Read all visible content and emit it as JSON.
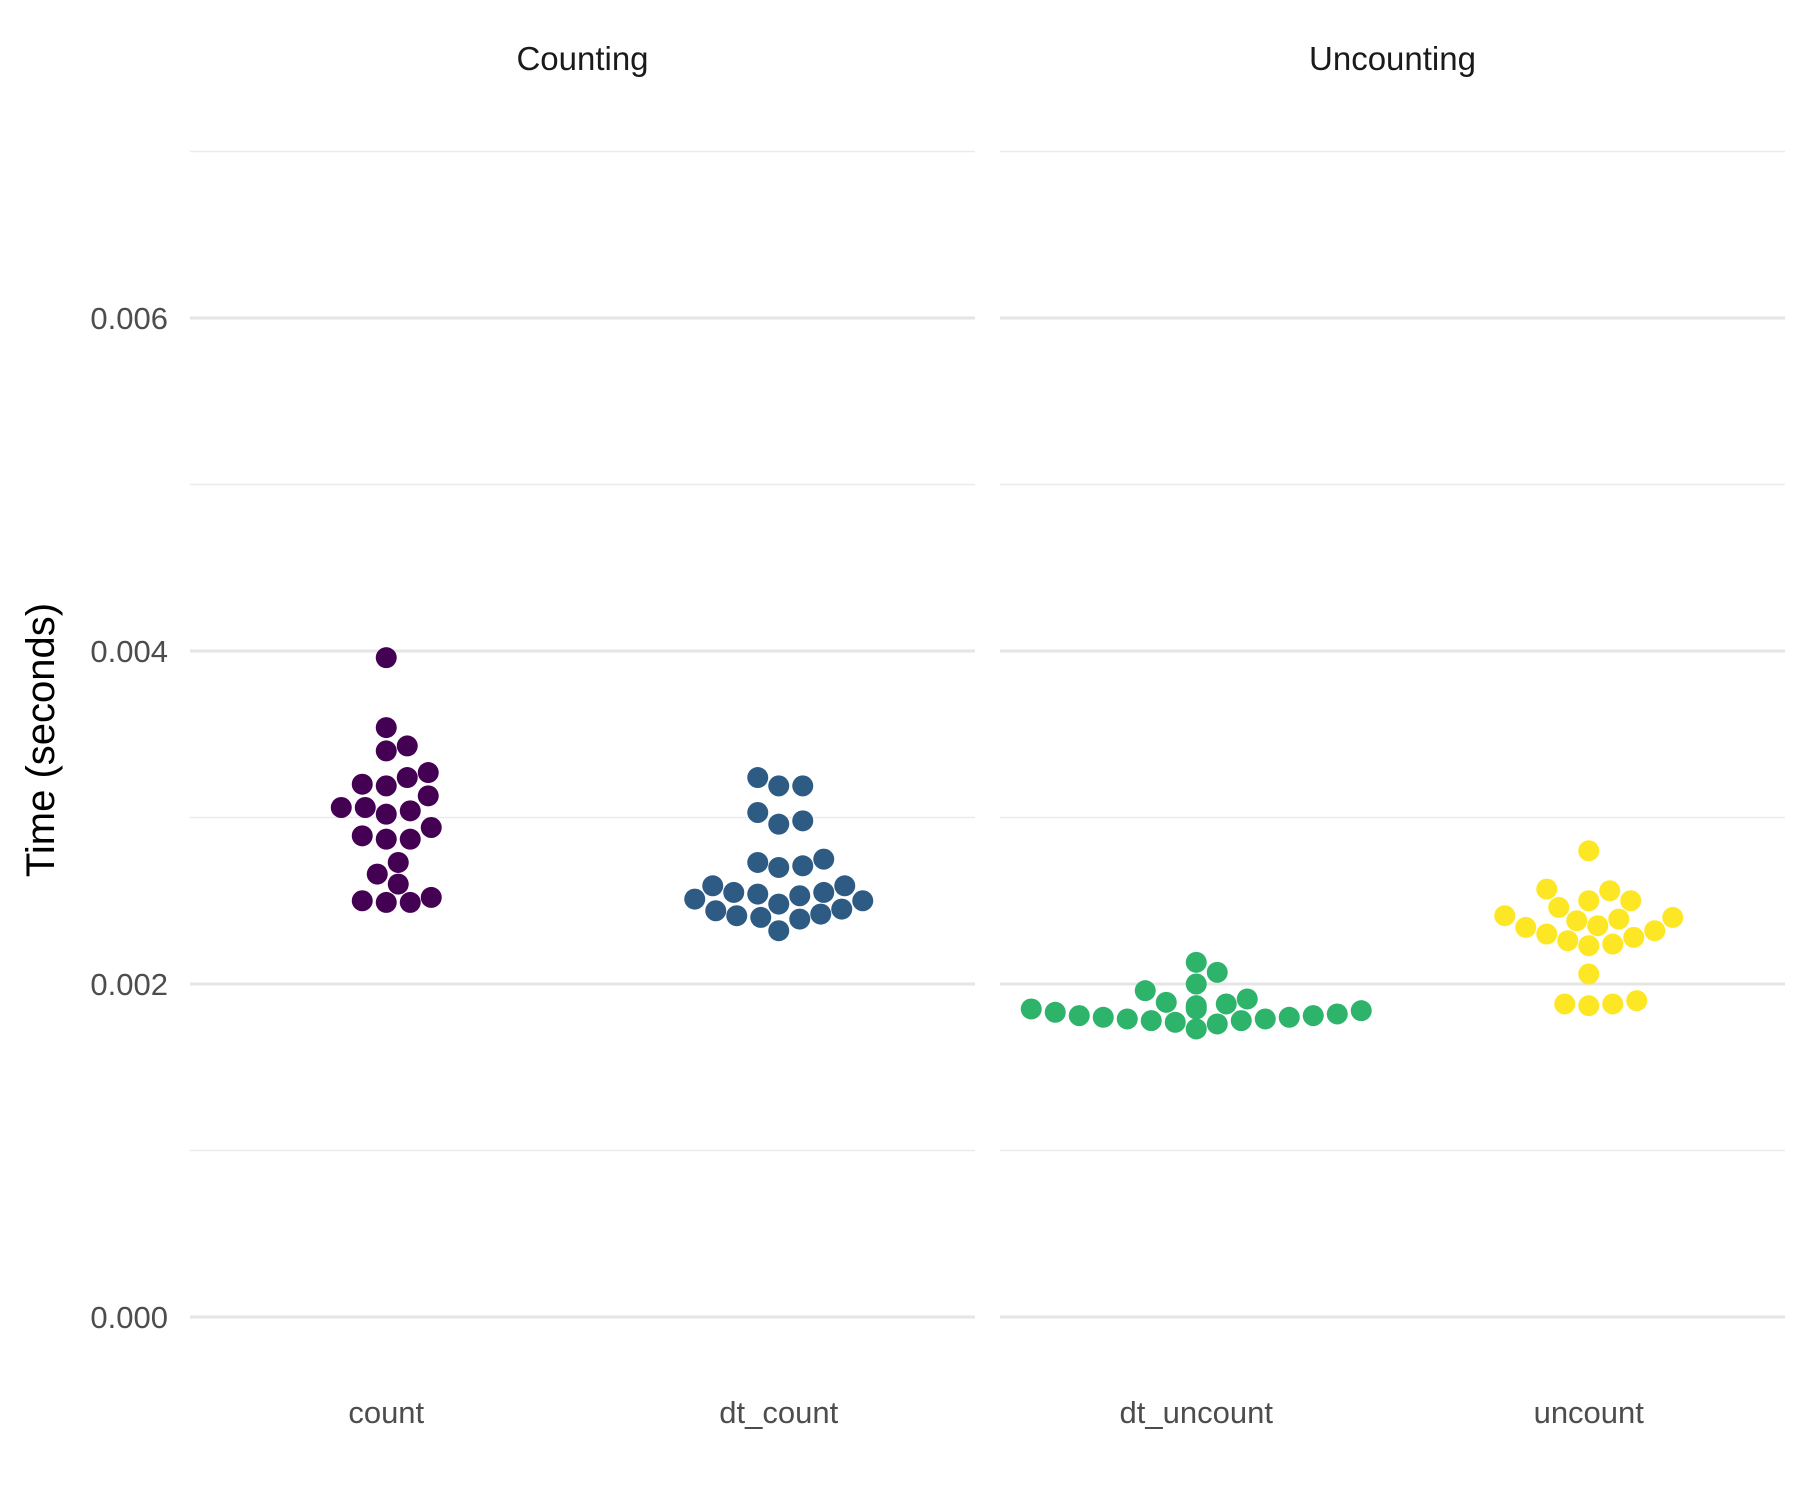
{
  "chart_data": {
    "type": "scatter",
    "subtype": "beeswarm",
    "title": "",
    "ylabel": "Time (seconds)",
    "ylim": [
      -0.0001,
      0.007
    ],
    "yticks": [
      0.0,
      0.002,
      0.004,
      0.006
    ],
    "ytick_labels": [
      "0.000",
      "0.002",
      "0.004",
      "0.006"
    ],
    "y_minor_gridlines": [
      0.001,
      0.003,
      0.005,
      0.007
    ],
    "grid": true,
    "legend": "none",
    "panels": [
      {
        "title": "Counting",
        "categories": [
          "count",
          "dt_count"
        ],
        "series": [
          {
            "category": "count",
            "color": "#440154",
            "values": [
              0.00396,
              0.00354,
              0.00343,
              0.0034,
              0.00327,
              0.00324,
              0.00319,
              0.0032,
              0.00313,
              0.00306,
              0.00306,
              0.00304,
              0.00302,
              0.00294,
              0.00289,
              0.00287,
              0.00287,
              0.00273,
              0.00266,
              0.0026,
              0.00252,
              0.0025,
              0.00249,
              0.00249
            ]
          },
          {
            "category": "dt_count",
            "color": "#2e5b84",
            "values": [
              0.00324,
              0.00319,
              0.00319,
              0.00303,
              0.00298,
              0.00296,
              0.00275,
              0.00273,
              0.00271,
              0.0027,
              0.00259,
              0.00259,
              0.00255,
              0.00255,
              0.00254,
              0.00253,
              0.00251,
              0.0025,
              0.00248,
              0.00245,
              0.00244,
              0.00242,
              0.00241,
              0.0024,
              0.00239,
              0.00232
            ]
          }
        ]
      },
      {
        "title": "Uncounting",
        "categories": [
          "dt_uncount",
          "uncount"
        ],
        "series": [
          {
            "category": "dt_uncount",
            "color": "#2eb36b",
            "values": [
              0.00213,
              0.00207,
              0.002,
              0.00196,
              0.00191,
              0.00189,
              0.00188,
              0.00187,
              0.00186,
              0.00185,
              0.00185,
              0.00184,
              0.00183,
              0.00182,
              0.00181,
              0.00181,
              0.0018,
              0.0018,
              0.00179,
              0.00179,
              0.00178,
              0.00178,
              0.00177,
              0.00176,
              0.00173
            ]
          },
          {
            "category": "uncount",
            "color": "#fde725",
            "values": [
              0.0028,
              0.00257,
              0.00256,
              0.0025,
              0.0025,
              0.00246,
              0.00241,
              0.0024,
              0.00239,
              0.00238,
              0.00235,
              0.00234,
              0.00232,
              0.0023,
              0.00228,
              0.00226,
              0.00224,
              0.00223,
              0.00206,
              0.0019,
              0.00188,
              0.00188,
              0.00187
            ]
          }
        ]
      }
    ]
  }
}
